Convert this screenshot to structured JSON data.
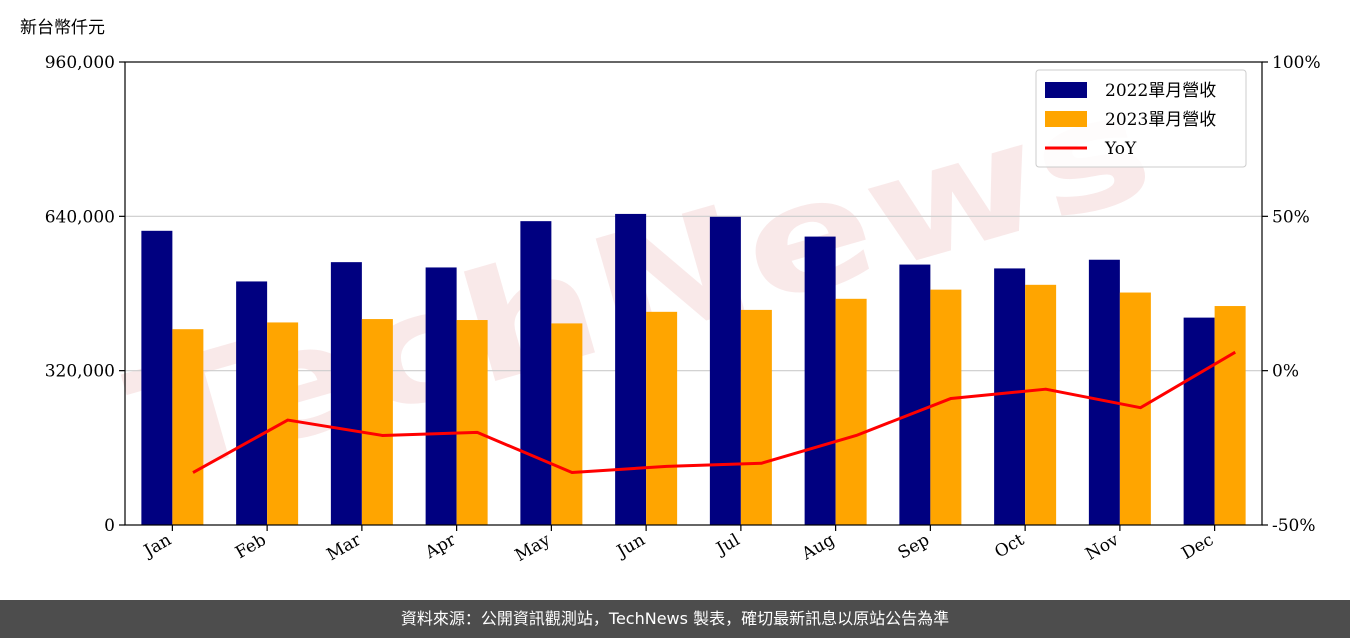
{
  "watermark": "TechNews",
  "footer_text": "資料來源：公開資訊觀測站，TechNews 製表，確切最新訊息以原站公告為準",
  "chart_data": {
    "type": "bar",
    "ylabel": "新台幣仟元",
    "categories": [
      "Jan",
      "Feb",
      "Mar",
      "Apr",
      "May",
      "Jun",
      "Jul",
      "Aug",
      "Sep",
      "Oct",
      "Nov",
      "Dec"
    ],
    "series": [
      {
        "name": "2022單月營收",
        "type": "bar",
        "color": "#000080",
        "values": [
          610000,
          505000,
          545000,
          534000,
          630000,
          645000,
          639000,
          598000,
          540000,
          532000,
          550000,
          430000
        ]
      },
      {
        "name": "2023單月營收",
        "type": "bar",
        "color": "#ffa500",
        "values": [
          406000,
          420000,
          427000,
          425000,
          418000,
          442000,
          446000,
          469000,
          488000,
          498000,
          482000,
          454000
        ]
      },
      {
        "name": "YoY",
        "type": "line",
        "axis": "right",
        "color": "#ff0000",
        "values": [
          -33,
          -16,
          -21,
          -20,
          -33,
          -31,
          -30,
          -21,
          -9,
          -6,
          -12,
          6
        ]
      }
    ],
    "ylim": [
      0,
      960000
    ],
    "yticks": [
      0,
      320000,
      640000,
      960000
    ],
    "ytick_labels": [
      "0",
      "320,000",
      "640,000",
      "960,000"
    ],
    "y2lim": [
      -50,
      100
    ],
    "y2ticks": [
      -50,
      0,
      50,
      100
    ],
    "y2tick_labels": [
      "-50%",
      "0%",
      "50%",
      "100%"
    ],
    "grid": "horizontal",
    "legend_position": "top-right"
  }
}
